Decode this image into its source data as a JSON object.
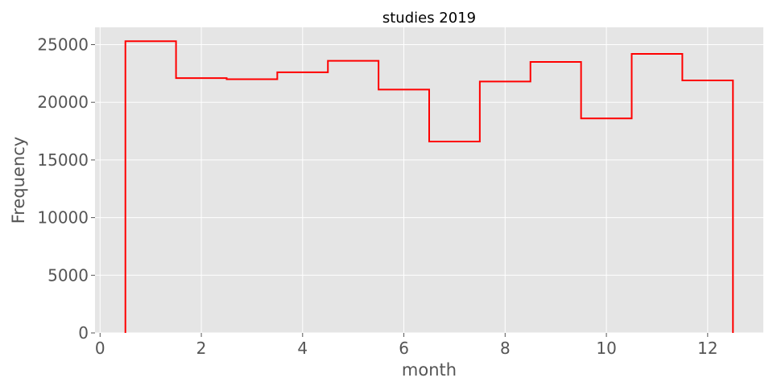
{
  "chart_data": {
    "type": "bar",
    "histtype": "step",
    "title": "studies 2019",
    "xlabel": "month",
    "ylabel": "Frequency",
    "xlim": [
      -0.1,
      13.1
    ],
    "ylim": [
      0,
      26500
    ],
    "xticks": [
      0,
      2,
      4,
      6,
      8,
      10,
      12
    ],
    "yticks": [
      0,
      5000,
      10000,
      15000,
      20000,
      25000
    ],
    "bin_edges": [
      0.5,
      1.5,
      2.5,
      3.5,
      4.5,
      5.5,
      6.5,
      7.5,
      8.5,
      9.5,
      10.5,
      11.5,
      12.5
    ],
    "categories": [
      "1",
      "2",
      "3",
      "4",
      "5",
      "6",
      "7",
      "8",
      "9",
      "10",
      "11",
      "12"
    ],
    "values": [
      25300,
      22100,
      22000,
      22600,
      23600,
      21100,
      16600,
      21800,
      23500,
      18600,
      24200,
      21900
    ],
    "grid": true,
    "colors": {
      "line": "#ff0000",
      "background": "#e5e5e5",
      "grid": "#ffffff"
    }
  }
}
